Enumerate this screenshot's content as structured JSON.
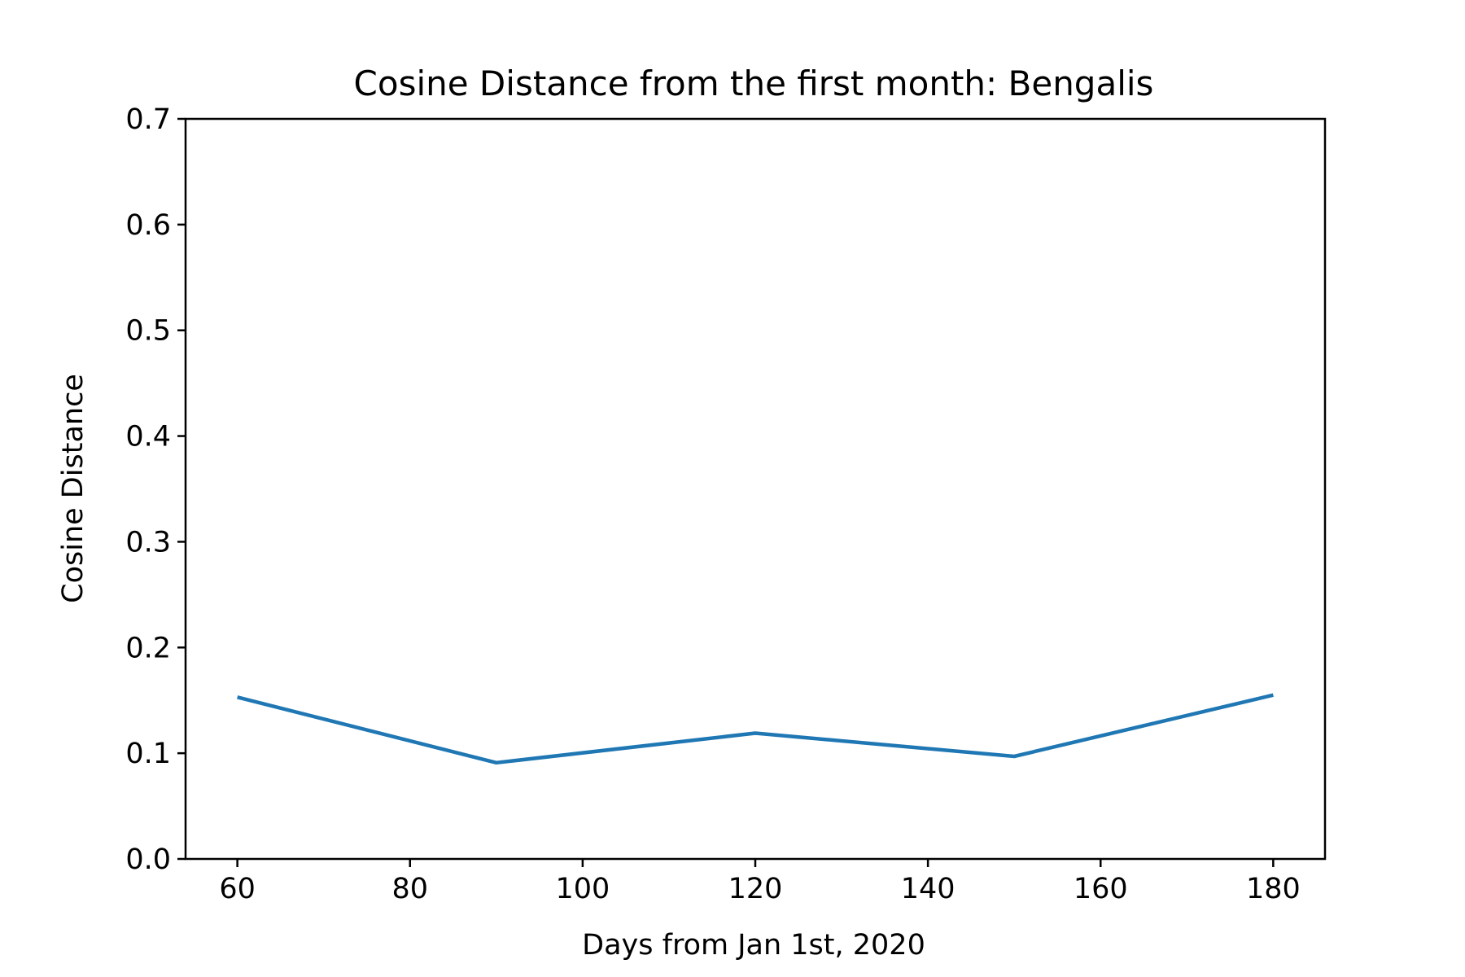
{
  "chart_data": {
    "type": "line",
    "title": "Cosine Distance from the first month: Bengalis",
    "xlabel": "Days from Jan 1st, 2020",
    "ylabel": "Cosine Distance",
    "xlim": [
      54,
      186
    ],
    "ylim": [
      0.0,
      0.7
    ],
    "x_ticks": [
      60,
      80,
      100,
      120,
      140,
      160,
      180
    ],
    "x_tick_labels": [
      "60",
      "80",
      "100",
      "120",
      "140",
      "160",
      "180"
    ],
    "y_ticks": [
      0.0,
      0.1,
      0.2,
      0.3,
      0.4,
      0.5,
      0.6,
      0.7
    ],
    "y_tick_labels": [
      "0.0",
      "0.1",
      "0.2",
      "0.3",
      "0.4",
      "0.5",
      "0.6",
      "0.7"
    ],
    "grid": false,
    "series": [
      {
        "color": "#1f77b4",
        "x": [
          60,
          90,
          120,
          150,
          180
        ],
        "y": [
          0.153,
          0.091,
          0.119,
          0.097,
          0.155
        ]
      }
    ]
  }
}
